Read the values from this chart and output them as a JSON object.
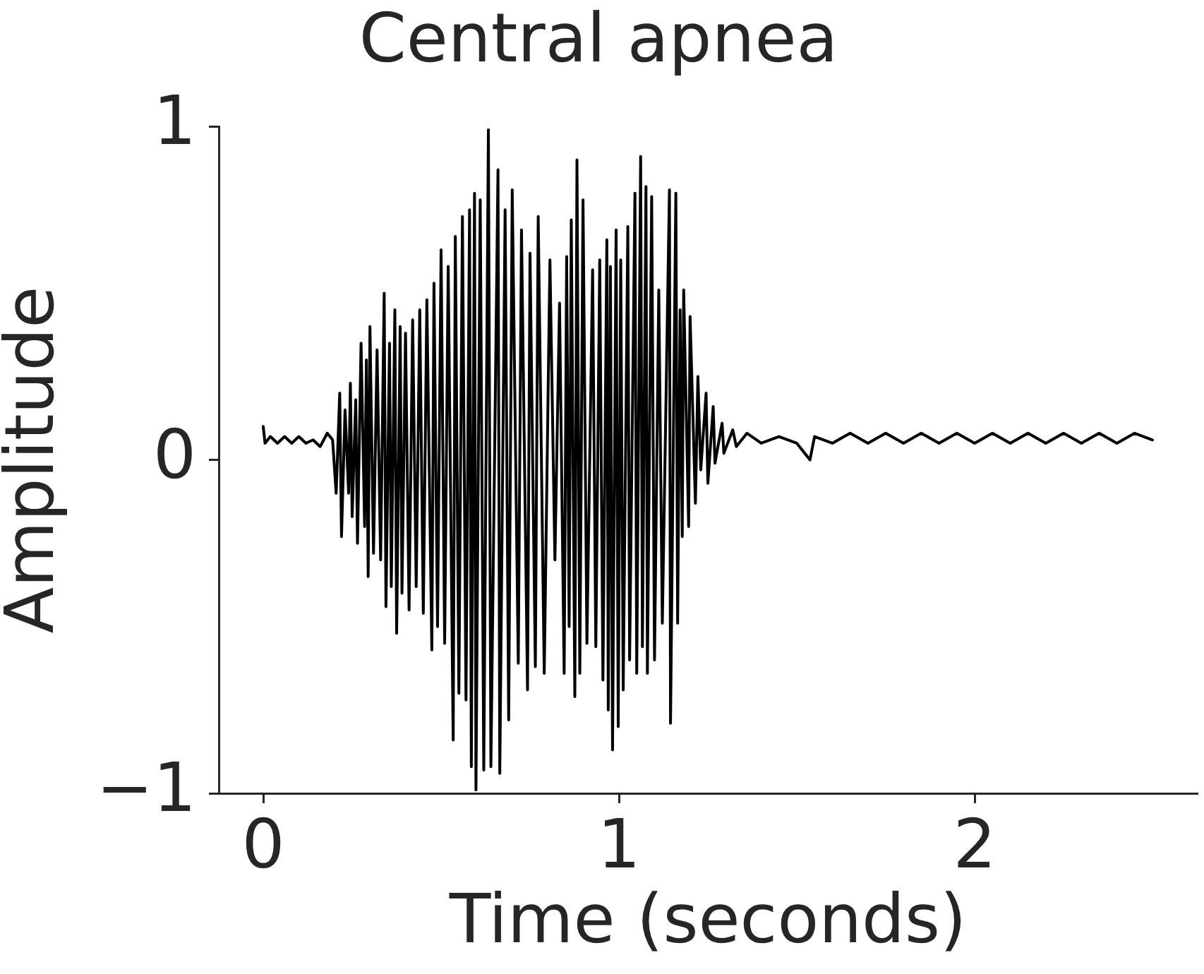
{
  "chart_data": {
    "type": "line",
    "title": "Central apnea",
    "xlabel": "Time (seconds)",
    "ylabel": "Amplitude",
    "x": [
      0,
      0.005,
      0.02,
      0.04,
      0.06,
      0.08,
      0.1,
      0.12,
      0.14,
      0.16,
      0.18,
      0.195,
      0.205,
      0.215,
      0.22,
      0.23,
      0.24,
      0.245,
      0.25,
      0.26,
      0.265,
      0.275,
      0.285,
      0.29,
      0.295,
      0.3,
      0.31,
      0.32,
      0.33,
      0.34,
      0.345,
      0.355,
      0.36,
      0.37,
      0.375,
      0.385,
      0.39,
      0.4,
      0.41,
      0.42,
      0.43,
      0.44,
      0.45,
      0.46,
      0.474,
      0.48,
      0.49,
      0.5,
      0.51,
      0.52,
      0.534,
      0.54,
      0.55,
      0.56,
      0.57,
      0.58,
      0.585,
      0.594,
      0.598,
      0.61,
      0.62,
      0.633,
      0.64,
      0.66,
      0.665,
      0.68,
      0.69,
      0.7,
      0.717,
      0.726,
      0.743,
      0.75,
      0.765,
      0.773,
      0.79,
      0.806,
      0.82,
      0.833,
      0.846,
      0.853,
      0.86,
      0.866,
      0.876,
      0.882,
      0.89,
      0.899,
      0.91,
      0.926,
      0.935,
      0.946,
      0.955,
      0.966,
      0.97,
      0.976,
      0.982,
      0.992,
      0.998,
      1.005,
      1.012,
      1.025,
      1.03,
      1.045,
      1.05,
      1.061,
      1.066,
      1.076,
      1.08,
      1.092,
      1.1,
      1.112,
      1.122,
      1.142,
      1.145,
      1.16,
      1.165,
      1.172,
      1.178,
      1.182,
      1.196,
      1.2,
      1.215,
      1.222,
      1.23,
      1.245,
      1.25,
      1.265,
      1.27,
      1.29,
      1.295,
      1.32,
      1.33,
      1.36,
      1.4,
      1.45,
      1.5,
      1.537,
      1.55,
      1.6,
      1.65,
      1.7,
      1.75,
      1.8,
      1.85,
      1.9,
      1.95,
      2,
      2.05,
      2.1,
      2.15,
      2.2,
      2.25,
      2.3,
      2.35,
      2.4,
      2.45,
      2.5
    ],
    "series": [
      {
        "color": "#000000",
        "values": [
          0.1,
          0.05,
          0.07,
          0.05,
          0.07,
          0.05,
          0.07,
          0.05,
          0.06,
          0.04,
          0.08,
          0.06,
          -0.1,
          0.2,
          -0.23,
          0.15,
          -0.1,
          0.23,
          -0.17,
          0.18,
          -0.25,
          0.35,
          -0.2,
          0.3,
          -0.35,
          0.4,
          -0.28,
          0.33,
          -0.3,
          0.5,
          -0.44,
          0.35,
          -0.38,
          0.45,
          -0.52,
          0.4,
          -0.4,
          0.38,
          -0.45,
          0.42,
          -0.38,
          0.45,
          -0.46,
          0.48,
          -0.57,
          0.53,
          -0.5,
          0.63,
          -0.55,
          0.58,
          -0.84,
          0.67,
          -0.7,
          0.73,
          -0.72,
          0.75,
          -0.92,
          0.8,
          -0.99,
          0.78,
          -0.93,
          0.99,
          -0.92,
          0.87,
          -0.94,
          0.75,
          -0.78,
          0.81,
          -0.61,
          0.69,
          -0.69,
          0.62,
          -0.62,
          0.73,
          -0.64,
          0.6,
          -0.3,
          0.47,
          -0.64,
          0.61,
          -0.5,
          0.72,
          -0.71,
          0.9,
          -0.64,
          0.78,
          -0.55,
          0.57,
          -0.56,
          0.6,
          -0.66,
          0.66,
          -0.75,
          0.58,
          -0.87,
          0.69,
          -0.8,
          0.6,
          -0.69,
          0.7,
          -0.6,
          0.8,
          -0.64,
          0.91,
          -0.56,
          0.82,
          -0.64,
          0.79,
          -0.6,
          0.51,
          -0.49,
          0.81,
          -0.79,
          0.8,
          -0.49,
          0.45,
          -0.23,
          0.51,
          -0.2,
          0.43,
          -0.13,
          0.25,
          -0.03,
          0.2,
          -0.07,
          0.16,
          -0.01,
          0.11,
          0.02,
          0.09,
          0.04,
          0.08,
          0.05,
          0.07,
          0.05,
          0,
          0.07,
          0.05,
          0.08,
          0.05,
          0.08,
          0.05,
          0.08,
          0.05,
          0.08,
          0.05,
          0.08,
          0.05,
          0.08,
          0.05,
          0.08,
          0.05,
          0.08,
          0.05,
          0.08,
          0.06
        ]
      }
    ],
    "xlim": [
      -0.125,
      2.625
    ],
    "ylim": [
      -1,
      1
    ],
    "xticks": [
      0,
      1,
      2
    ],
    "yticks": [
      {
        "value": -1,
        "label": "−1"
      },
      0,
      1
    ],
    "marker": "none",
    "line_style": "solid"
  }
}
